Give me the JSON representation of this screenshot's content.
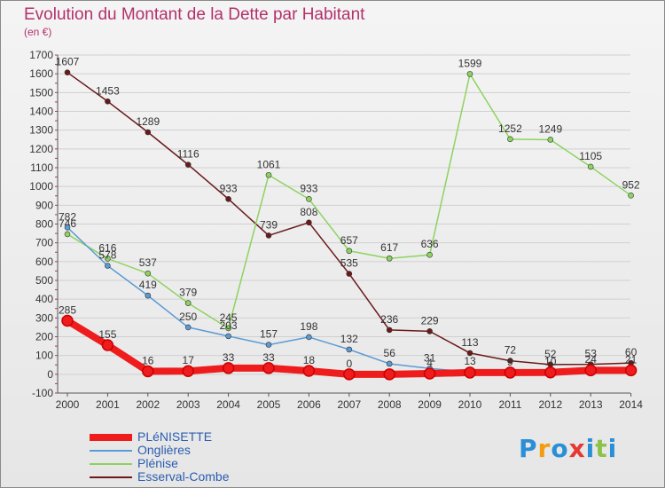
{
  "header": {
    "title": "Evolution du Montant de la Dette par Habitant",
    "subtitle": "(en €)"
  },
  "colors": {
    "title": "#b3316b",
    "axis": "#333333",
    "grid": "#d0d0d0"
  },
  "chart_data": {
    "type": "line",
    "title": "Evolution du Montant de la Dette par Habitant",
    "ylabel": "(en €)",
    "xlabel": "",
    "x": [
      "2000",
      "2001",
      "2002",
      "2003",
      "2004",
      "2005",
      "2006",
      "2007",
      "2008",
      "2009",
      "2010",
      "2011",
      "2012",
      "2013",
      "2014"
    ],
    "ylim": [
      -100,
      1700
    ],
    "yticks": [
      -100,
      0,
      100,
      200,
      300,
      400,
      500,
      600,
      700,
      800,
      900,
      1000,
      1100,
      1200,
      1300,
      1400,
      1500,
      1600,
      1700
    ],
    "grid": "horizontal",
    "legend": "bottom-left",
    "series": [
      {
        "name": "Esserval-Combe",
        "color": "#6b1a1a",
        "width": 1.5,
        "values": [
          1607,
          1453,
          1289,
          1116,
          933,
          739,
          808,
          535,
          236,
          229,
          113,
          72,
          52,
          53,
          60
        ],
        "labels": [
          "1607",
          "1453",
          "1289",
          "1116",
          "933",
          "739",
          "808",
          "535",
          "236",
          "229",
          "113",
          "72",
          "52",
          "53",
          "60"
        ]
      },
      {
        "name": "Plénise",
        "color": "#8dd35f",
        "width": 1.5,
        "values": [
          746,
          616,
          537,
          379,
          245,
          1061,
          933,
          657,
          617,
          636,
          1599,
          1252,
          1249,
          1105,
          952
        ],
        "labels": [
          "746",
          "616",
          "537",
          "379",
          "245",
          "1061",
          "933",
          "657",
          "617",
          "636",
          "1599",
          "1252",
          "1249",
          "1105",
          "952"
        ]
      },
      {
        "name": "Onglières",
        "color": "#5b9bd5",
        "width": 1.5,
        "values": [
          782,
          578,
          419,
          250,
          203,
          157,
          198,
          132,
          56,
          31,
          13,
          9,
          10,
          24,
          21
        ],
        "labels": [
          "782",
          "578",
          "419",
          "250",
          "203",
          "157",
          "198",
          "132",
          "56",
          "31",
          "13",
          "9",
          "10",
          "24",
          "21"
        ]
      },
      {
        "name": "PLéNISETTE",
        "color": "#ee1c1c",
        "width": 8,
        "values": [
          285,
          155,
          16,
          17,
          33,
          33,
          18,
          0,
          0,
          4,
          9,
          9,
          10,
          21,
          21
        ],
        "labels": [
          "285",
          "155",
          "16",
          "17",
          "33",
          "33",
          "18",
          "0",
          "",
          "4",
          "",
          "",
          "",
          "",
          ""
        ]
      }
    ]
  },
  "legend_items": [
    {
      "label": "PLéNISETTE",
      "color": "#ee1c1c"
    },
    {
      "label": "Onglières",
      "color": "#5b9bd5"
    },
    {
      "label": "Plénise",
      "color": "#8dd35f"
    },
    {
      "label": "Esserval-Combe",
      "color": "#6b1a1a"
    }
  ],
  "logo": {
    "letters": [
      "P",
      "r",
      "o",
      "x",
      "i",
      "t",
      "i"
    ],
    "colors": [
      "#2a8fd6",
      "#f39c12",
      "#2a8fd6",
      "#e53935",
      "#2a8fd6",
      "#8bc34a",
      "#2a8fd6"
    ]
  }
}
